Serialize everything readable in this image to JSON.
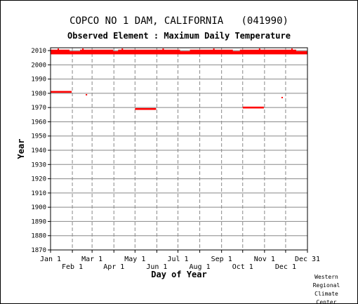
{
  "chart_data": {
    "type": "scatter",
    "title": "COPCO NO 1 DAM, CALIFORNIA   (041990)",
    "subtitle": "Observed Element : Maximum Daily Temperature",
    "xlabel": "Day of Year",
    "ylabel": "Year",
    "ylim": [
      1870,
      2012
    ],
    "yticks": [
      1870,
      1880,
      1890,
      1900,
      1910,
      1920,
      1930,
      1940,
      1950,
      1960,
      1970,
      1980,
      1990,
      2000,
      2010
    ],
    "xlim": [
      1,
      366
    ],
    "x_ticks_upper": [
      {
        "day": 1,
        "label": "Jan 1"
      },
      {
        "day": 60,
        "label": "Mar 1"
      },
      {
        "day": 121,
        "label": "May 1"
      },
      {
        "day": 182,
        "label": "Jul 1"
      },
      {
        "day": 244,
        "label": "Sep 1"
      },
      {
        "day": 305,
        "label": "Nov 1"
      },
      {
        "day": 366,
        "label": "Dec 31"
      }
    ],
    "x_ticks_lower": [
      {
        "day": 32,
        "label": "Feb 1"
      },
      {
        "day": 91,
        "label": "Apr 1"
      },
      {
        "day": 152,
        "label": "Jun 1"
      },
      {
        "day": 213,
        "label": "Aug 1"
      },
      {
        "day": 274,
        "label": "Oct 1"
      },
      {
        "day": 335,
        "label": "Dec 1"
      }
    ],
    "grid": true,
    "series_color": "#ff0000",
    "segments": [
      {
        "year": 2008,
        "start": 1,
        "end": 366
      },
      {
        "year": 2009,
        "start": 1,
        "end": 366
      },
      {
        "year": 2010,
        "start": 1,
        "end": 28
      },
      {
        "year": 2010,
        "start": 43,
        "end": 90
      },
      {
        "year": 2010,
        "start": 97,
        "end": 185
      },
      {
        "year": 2010,
        "start": 199,
        "end": 260
      },
      {
        "year": 2010,
        "start": 270,
        "end": 350
      },
      {
        "year": 1981,
        "start": 1,
        "end": 31
      },
      {
        "year": 1969,
        "start": 121,
        "end": 151
      },
      {
        "year": 1970,
        "start": 274,
        "end": 304
      }
    ],
    "points": [
      {
        "year": 1979,
        "day": 52
      },
      {
        "year": 1977,
        "day": 330
      },
      {
        "year": 2011,
        "day": 12
      },
      {
        "year": 2011,
        "day": 47
      },
      {
        "year": 2011,
        "day": 103
      },
      {
        "year": 2011,
        "day": 161
      },
      {
        "year": 2011,
        "day": 233
      },
      {
        "year": 2011,
        "day": 298
      },
      {
        "year": 2011,
        "day": 344
      }
    ]
  },
  "credit": [
    "Western",
    "Regional",
    "Climate",
    "Center"
  ]
}
